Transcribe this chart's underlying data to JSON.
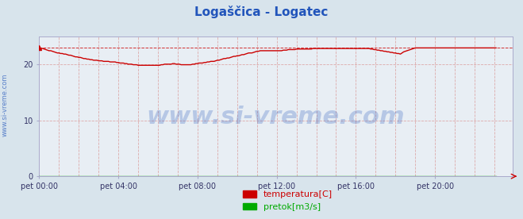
{
  "title": "Logaščica - Logatec",
  "title_color": "#2255bb",
  "title_fontsize": 11,
  "bg_color": "#d8e4ec",
  "plot_bg_color": "#e8eef4",
  "xlim": [
    0,
    287
  ],
  "ylim": [
    0,
    25
  ],
  "yticks": [
    0,
    10,
    20
  ],
  "xtick_labels": [
    "pet 00:00",
    "pet 04:00",
    "pet 08:00",
    "pet 12:00",
    "pet 16:00",
    "pet 20:00"
  ],
  "xtick_positions": [
    0,
    48,
    96,
    144,
    192,
    240
  ],
  "watermark": "www.si-vreme.com",
  "watermark_color": "#2255bb",
  "watermark_alpha": 0.25,
  "watermark_fontsize": 22,
  "side_label": "www.si-vreme.com",
  "side_label_color": "#2255bb",
  "side_label_fontsize": 6,
  "temp_color": "#cc0000",
  "flow_color": "#00aa00",
  "legend_temp_label": "temperatura[C]",
  "legend_flow_label": "pretok[m3/s]",
  "legend_fontsize": 8,
  "legend_color": "#cc0000",
  "temp_max_line_y": 22.9,
  "grid_h_color": "#ddaaaa",
  "grid_v_color": "#ddaaaa",
  "temp_data": [
    22.9,
    22.8,
    22.8,
    22.7,
    22.6,
    22.5,
    22.4,
    22.4,
    22.3,
    22.2,
    22.1,
    22.0,
    22.0,
    21.9,
    21.9,
    21.8,
    21.8,
    21.7,
    21.6,
    21.6,
    21.5,
    21.4,
    21.3,
    21.3,
    21.2,
    21.2,
    21.1,
    21.0,
    21.0,
    20.9,
    20.9,
    20.8,
    20.8,
    20.7,
    20.7,
    20.7,
    20.6,
    20.6,
    20.6,
    20.5,
    20.5,
    20.5,
    20.5,
    20.4,
    20.4,
    20.4,
    20.4,
    20.3,
    20.3,
    20.2,
    20.2,
    20.2,
    20.1,
    20.1,
    20.0,
    20.0,
    20.0,
    19.9,
    19.9,
    19.9,
    19.8,
    19.8,
    19.8,
    19.8,
    19.8,
    19.8,
    19.8,
    19.8,
    19.8,
    19.8,
    19.8,
    19.8,
    19.8,
    19.8,
    19.9,
    19.9,
    20.0,
    20.0,
    20.0,
    20.0,
    20.0,
    20.1,
    20.1,
    20.0,
    20.0,
    20.0,
    19.9,
    19.9,
    19.9,
    19.9,
    19.9,
    19.9,
    19.9,
    20.0,
    20.0,
    20.1,
    20.1,
    20.2,
    20.2,
    20.2,
    20.3,
    20.3,
    20.4,
    20.4,
    20.5,
    20.5,
    20.5,
    20.6,
    20.7,
    20.7,
    20.8,
    20.9,
    21.0,
    21.0,
    21.1,
    21.1,
    21.2,
    21.3,
    21.4,
    21.4,
    21.5,
    21.5,
    21.6,
    21.7,
    21.7,
    21.8,
    21.9,
    22.0,
    22.0,
    22.0,
    22.1,
    22.2,
    22.3,
    22.3,
    22.4,
    22.4,
    22.4,
    22.4,
    22.4,
    22.4,
    22.4,
    22.4,
    22.4,
    22.4,
    22.4,
    22.4,
    22.4,
    22.4,
    22.5,
    22.5,
    22.5,
    22.6,
    22.6,
    22.6,
    22.6,
    22.6,
    22.7,
    22.7,
    22.7,
    22.7,
    22.7,
    22.7,
    22.7,
    22.7,
    22.7,
    22.7,
    22.8,
    22.8,
    22.8,
    22.8,
    22.8,
    22.8,
    22.8,
    22.8,
    22.8,
    22.8,
    22.8,
    22.8,
    22.8,
    22.8,
    22.8,
    22.8,
    22.8,
    22.8,
    22.8,
    22.8,
    22.8,
    22.8,
    22.8,
    22.8,
    22.8,
    22.8,
    22.8,
    22.8,
    22.8,
    22.8,
    22.8,
    22.8,
    22.8,
    22.8,
    22.8,
    22.7,
    22.7,
    22.6,
    22.6,
    22.5,
    22.5,
    22.4,
    22.4,
    22.3,
    22.3,
    22.2,
    22.2,
    22.1,
    22.1,
    22.0,
    22.0,
    21.9,
    21.9,
    21.8,
    22.0,
    22.2,
    22.3,
    22.4,
    22.5,
    22.6,
    22.7,
    22.8,
    22.9,
    22.9,
    22.9,
    22.9,
    22.9,
    22.9,
    22.9,
    22.9,
    22.9,
    22.9,
    22.9,
    22.9,
    22.9,
    22.9,
    22.9,
    22.9,
    22.9,
    22.9,
    22.9,
    22.9,
    22.9,
    22.9,
    22.9,
    22.9,
    22.9,
    22.9,
    22.9,
    22.9,
    22.9,
    22.9,
    22.9,
    22.9,
    22.9,
    22.9,
    22.9,
    22.9,
    22.9,
    22.9,
    22.9,
    22.9,
    22.9,
    22.9,
    22.9,
    22.9,
    22.9,
    22.9,
    22.9,
    22.9,
    22.9,
    22.9
  ],
  "flow_data_value": 0.02
}
